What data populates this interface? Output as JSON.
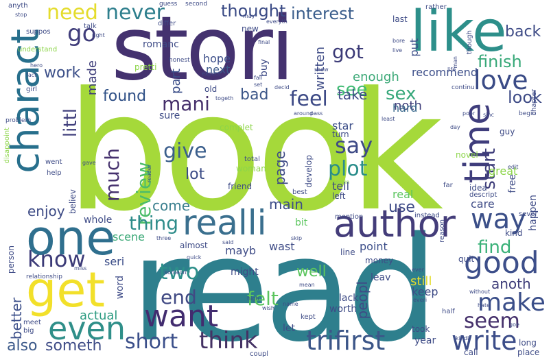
{
  "words": [
    {
      "text": "book",
      "color": "#a5d93a"
    },
    {
      "text": "read",
      "color": "#2e7f8d"
    },
    {
      "text": "stori",
      "color": "#44326f"
    },
    {
      "text": "like",
      "color": "#2d8f8a"
    },
    {
      "text": "charact",
      "color": "#276f8c"
    },
    {
      "text": "one",
      "color": "#2f6f8e"
    },
    {
      "text": "get",
      "color": "#f2e02a"
    },
    {
      "text": "author",
      "color": "#443d7a"
    },
    {
      "text": "realli",
      "color": "#3a6f8e"
    },
    {
      "text": "time",
      "color": "#3f3d7c"
    },
    {
      "text": "even",
      "color": "#2f8f89"
    },
    {
      "text": "want",
      "color": "#422c6f"
    },
    {
      "text": "good",
      "color": "#3d4f8a"
    },
    {
      "text": "make",
      "color": "#3a4e89"
    },
    {
      "text": "love",
      "color": "#3a4b86"
    },
    {
      "text": "trifirst",
      "color": "#3c5688"
    },
    {
      "text": "think",
      "color": "#443264"
    },
    {
      "text": "short",
      "color": "#3b4f8a"
    },
    {
      "text": "write",
      "color": "#3b4c88"
    },
    {
      "text": "know",
      "color": "#3b3a77"
    },
    {
      "text": "way",
      "color": "#3b4f88"
    },
    {
      "text": "two",
      "color": "#2d8f8a"
    },
    {
      "text": "need",
      "color": "#e4dc2c"
    },
    {
      "text": "never",
      "color": "#2e7f8d"
    },
    {
      "text": "go",
      "color": "#3f3c7a"
    },
    {
      "text": "feel",
      "color": "#3d4a86"
    },
    {
      "text": "give",
      "color": "#3a5e8c"
    },
    {
      "text": "say",
      "color": "#3e4a86"
    },
    {
      "text": "plot",
      "color": "#2a8d8b"
    },
    {
      "text": "much",
      "color": "#46326e"
    },
    {
      "text": "review",
      "color": "#4cbc6a"
    },
    {
      "text": "seem",
      "color": "#45306b"
    },
    {
      "text": "end",
      "color": "#414a84"
    },
    {
      "text": "felt",
      "color": "#5bc55e"
    },
    {
      "text": "thought",
      "color": "#3a4a85"
    },
    {
      "text": "interest",
      "color": "#3b5e8c"
    },
    {
      "text": "got",
      "color": "#3c3b78"
    },
    {
      "text": "finish",
      "color": "#37a878"
    },
    {
      "text": "sex",
      "color": "#36a77a"
    },
    {
      "text": "see",
      "color": "#40bb74"
    },
    {
      "text": "mani",
      "color": "#46306b"
    },
    {
      "text": "littl",
      "color": "#3f3e7b"
    },
    {
      "text": "thing",
      "color": "#2e8c8a"
    },
    {
      "text": "find",
      "color": "#3ab178"
    },
    {
      "text": "start",
      "color": "#3d3c79"
    },
    {
      "text": "look",
      "color": "#3e4b86"
    },
    {
      "text": "back",
      "color": "#3e4b86"
    },
    {
      "text": "work",
      "color": "#3b4f88"
    },
    {
      "text": "found",
      "color": "#2e4f86"
    },
    {
      "text": "also",
      "color": "#3c5a8a"
    },
    {
      "text": "someth",
      "color": "#3e4b86"
    },
    {
      "text": "page",
      "color": "#3e4b86"
    },
    {
      "text": "lot",
      "color": "#3a4a85"
    },
    {
      "text": "bad",
      "color": "#3c5688"
    },
    {
      "text": "main",
      "color": "#3d4d88"
    },
    {
      "text": "come",
      "color": "#3a7f8e"
    },
    {
      "text": "use",
      "color": "#3e4a86"
    },
    {
      "text": "enjoy",
      "color": "#3c4a85"
    },
    {
      "text": "anoth",
      "color": "#3c3b78"
    },
    {
      "text": "peopl",
      "color": "#3e4b86"
    },
    {
      "text": "well",
      "color": "#5bc55e"
    },
    {
      "text": "better",
      "color": "#3b4e89"
    },
    {
      "text": "actual",
      "color": "#2e9c82"
    },
    {
      "text": "take",
      "color": "#3e4b86"
    },
    {
      "text": "written",
      "color": "#3e4b86"
    },
    {
      "text": "enough",
      "color": "#3aa876"
    },
    {
      "text": "part",
      "color": "#3b4e89"
    },
    {
      "text": "made",
      "color": "#3d3c79"
    },
    {
      "text": "hope",
      "color": "#3c4e89"
    },
    {
      "text": "next",
      "color": "#3d5a8a"
    },
    {
      "text": "noth",
      "color": "#3e3c79"
    },
    {
      "text": "hard",
      "color": "#3b6a8d"
    },
    {
      "text": "star",
      "color": "#3c4e88"
    },
    {
      "text": "recommend",
      "color": "#3c4e89"
    },
    {
      "text": "tell",
      "color": "#3e4b86"
    },
    {
      "text": "put",
      "color": "#3c4e89"
    },
    {
      "text": "keep",
      "color": "#3e4b86"
    },
    {
      "text": "still",
      "color": "#e4dc2c"
    },
    {
      "text": "point",
      "color": "#3c4e89"
    },
    {
      "text": "wast",
      "color": "#3e4b86"
    },
    {
      "text": "care",
      "color": "#3e4b86"
    },
    {
      "text": "real",
      "color": "#5bc55e"
    },
    {
      "text": "great",
      "color": "#8dd54a"
    },
    {
      "text": "year",
      "color": "#3e4b86"
    },
    {
      "text": "bit",
      "color": "#5bc55e"
    },
    {
      "text": "scene",
      "color": "#3aa876"
    },
    {
      "text": "seri",
      "color": "#3c4e89"
    },
    {
      "text": "word",
      "color": "#3e4b86"
    },
    {
      "text": "mayb",
      "color": "#3e4b86"
    },
    {
      "text": "might",
      "color": "#3e4b86"
    },
    {
      "text": "let",
      "color": "#3e4b86"
    },
    {
      "text": "lack",
      "color": "#3e4b86"
    },
    {
      "text": "worth",
      "color": "#3e4b86"
    },
    {
      "text": "hate",
      "color": "#3e4b86"
    },
    {
      "text": "leav",
      "color": "#3e4b86"
    },
    {
      "text": "whole",
      "color": "#3e4b86"
    },
    {
      "text": "person",
      "color": "#3e4b86"
    },
    {
      "text": "idea",
      "color": "#3e4b86"
    },
    {
      "text": "happen",
      "color": "#3e4b86"
    },
    {
      "text": "free",
      "color": "#3e4b86"
    },
    {
      "text": "buy",
      "color": "#3e4b86"
    },
    {
      "text": "sure",
      "color": "#3e4b86"
    },
    {
      "text": "old",
      "color": "#3e4b86"
    },
    {
      "text": "romanc",
      "color": "#3e4b86"
    },
    {
      "text": "expect",
      "color": "#3e4b86"
    },
    {
      "text": "new",
      "color": "#3e4b86"
    },
    {
      "text": "life",
      "color": "#3e4b86"
    },
    {
      "text": "believ",
      "color": "#3e4b86"
    },
    {
      "text": "reader",
      "color": "#3e4b86"
    },
    {
      "text": "friend",
      "color": "#3e4b86"
    },
    {
      "text": "woman",
      "color": "#8dd54a"
    },
    {
      "text": "pretti",
      "color": "#8dd54a"
    },
    {
      "text": "complet",
      "color": "#8dd54a"
    },
    {
      "text": "develop",
      "color": "#3e4b86"
    },
    {
      "text": "left",
      "color": "#3e4b86"
    },
    {
      "text": "turn",
      "color": "#3e4b86"
    },
    {
      "text": "heroin",
      "color": "#8dd54a"
    },
    {
      "text": "novel",
      "color": "#8dd54a"
    },
    {
      "text": "guy",
      "color": "#3e4b86"
    },
    {
      "text": "sinc",
      "color": "#3e4b86"
    },
    {
      "text": "poor",
      "color": "#3e4b86"
    },
    {
      "text": "kind",
      "color": "#3e4b86"
    },
    {
      "text": "everi",
      "color": "#3e4b86"
    },
    {
      "text": "money",
      "color": "#3e4b86"
    },
    {
      "text": "quit",
      "color": "#3e4b86"
    },
    {
      "text": "ever",
      "color": "#3e4b86"
    },
    {
      "text": "line",
      "color": "#3e4b86"
    },
    {
      "text": "almost",
      "color": "#3e4b86"
    },
    {
      "text": "without",
      "color": "#3e4b86"
    },
    {
      "text": "call",
      "color": "#3e4b86"
    },
    {
      "text": "long",
      "color": "#3e4b86"
    },
    {
      "text": "place",
      "color": "#3e4b86"
    },
    {
      "text": "took",
      "color": "#3e4b86"
    },
    {
      "text": "kindl",
      "color": "#3e4b86"
    },
    {
      "text": "goe",
      "color": "#3e4b86"
    },
    {
      "text": "half",
      "color": "#3e4b86"
    },
    {
      "text": "someon",
      "color": "#3e4b86"
    },
    {
      "text": "coupl",
      "color": "#3e4b86"
    },
    {
      "text": "wish",
      "color": "#3e4b86"
    },
    {
      "text": "high",
      "color": "#3e4b86"
    },
    {
      "text": "name",
      "color": "#3e4b86"
    },
    {
      "text": "kept",
      "color": "#3e4b86"
    },
    {
      "text": "mean",
      "color": "#3e4b86"
    },
    {
      "text": "said",
      "color": "#3e4b86"
    },
    {
      "text": "skip",
      "color": "#3e4b86"
    },
    {
      "text": "quick",
      "color": "#3e4b86"
    },
    {
      "text": "three",
      "color": "#3e4b86"
    },
    {
      "text": "miss",
      "color": "#3e4b86"
    },
    {
      "text": "relationship",
      "color": "#3e4b86"
    },
    {
      "text": "meet",
      "color": "#3e4b86"
    },
    {
      "text": "big",
      "color": "#3e4b86"
    },
    {
      "text": "mention",
      "color": "#3e4b86"
    },
    {
      "text": "instead",
      "color": "#3e4b86"
    },
    {
      "text": "reason",
      "color": "#3e4b86"
    },
    {
      "text": "sever",
      "color": "#3e4b86"
    },
    {
      "text": "descript",
      "color": "#3e4b86"
    },
    {
      "text": "edit",
      "color": "#3e4b86"
    },
    {
      "text": "far",
      "color": "#3e4b86"
    },
    {
      "text": "best",
      "color": "#3e4b86"
    },
    {
      "text": "total",
      "color": "#3e4b86"
    },
    {
      "text": "help",
      "color": "#3e4b86"
    },
    {
      "text": "went",
      "color": "#3e4b86"
    },
    {
      "text": "gave",
      "color": "#3e4b86"
    },
    {
      "text": "problem",
      "color": "#3e4b86"
    },
    {
      "text": "disappoint",
      "color": "#8dd54a"
    },
    {
      "text": "understand",
      "color": "#8dd54a"
    },
    {
      "text": "girl",
      "color": "#3e4b86"
    },
    {
      "text": "fact",
      "color": "#3e4b86"
    },
    {
      "text": "hero",
      "color": "#3e4b86"
    },
    {
      "text": "suppos",
      "color": "#3e4b86"
    },
    {
      "text": "anyth",
      "color": "#3e4b86"
    },
    {
      "text": "stop",
      "color": "#3e4b86"
    },
    {
      "text": "talk",
      "color": "#3e4b86"
    },
    {
      "text": "differ",
      "color": "#3e4b86"
    },
    {
      "text": "right",
      "color": "#3e4b86"
    },
    {
      "text": "honest",
      "color": "#3e4b86"
    },
    {
      "text": "guess",
      "color": "#3e4b86"
    },
    {
      "text": "second",
      "color": "#3e4b86"
    },
    {
      "text": "may",
      "color": "#3e4b86"
    },
    {
      "text": "everyth",
      "color": "#3e4b86"
    },
    {
      "text": "final",
      "color": "#3e4b86"
    },
    {
      "text": "last",
      "color": "#3e4b86"
    },
    {
      "text": "bore",
      "color": "#3e4b86"
    },
    {
      "text": "live",
      "color": "#3e4b86"
    },
    {
      "text": "rather",
      "color": "#3e4b86"
    },
    {
      "text": "though",
      "color": "#3e4b86"
    },
    {
      "text": "show",
      "color": "#3e4b86"
    },
    {
      "text": "man",
      "color": "#3e4b86"
    },
    {
      "text": "continu",
      "color": "#3e4b86"
    },
    {
      "text": "chapter",
      "color": "#3e4b86"
    },
    {
      "text": "begin",
      "color": "#3e4b86"
    },
    {
      "text": "day",
      "color": "#3e4b86"
    },
    {
      "text": "fall",
      "color": "#3e4b86"
    },
    {
      "text": "set",
      "color": "#3e4b86"
    },
    {
      "text": "decid",
      "color": "#3e4b86"
    },
    {
      "text": "togeth",
      "color": "#3e4b86"
    },
    {
      "text": "around",
      "color": "#3e4b86"
    },
    {
      "text": "pass",
      "color": "#3e4b86"
    },
    {
      "text": "least",
      "color": "#3e4b86"
    }
  ]
}
